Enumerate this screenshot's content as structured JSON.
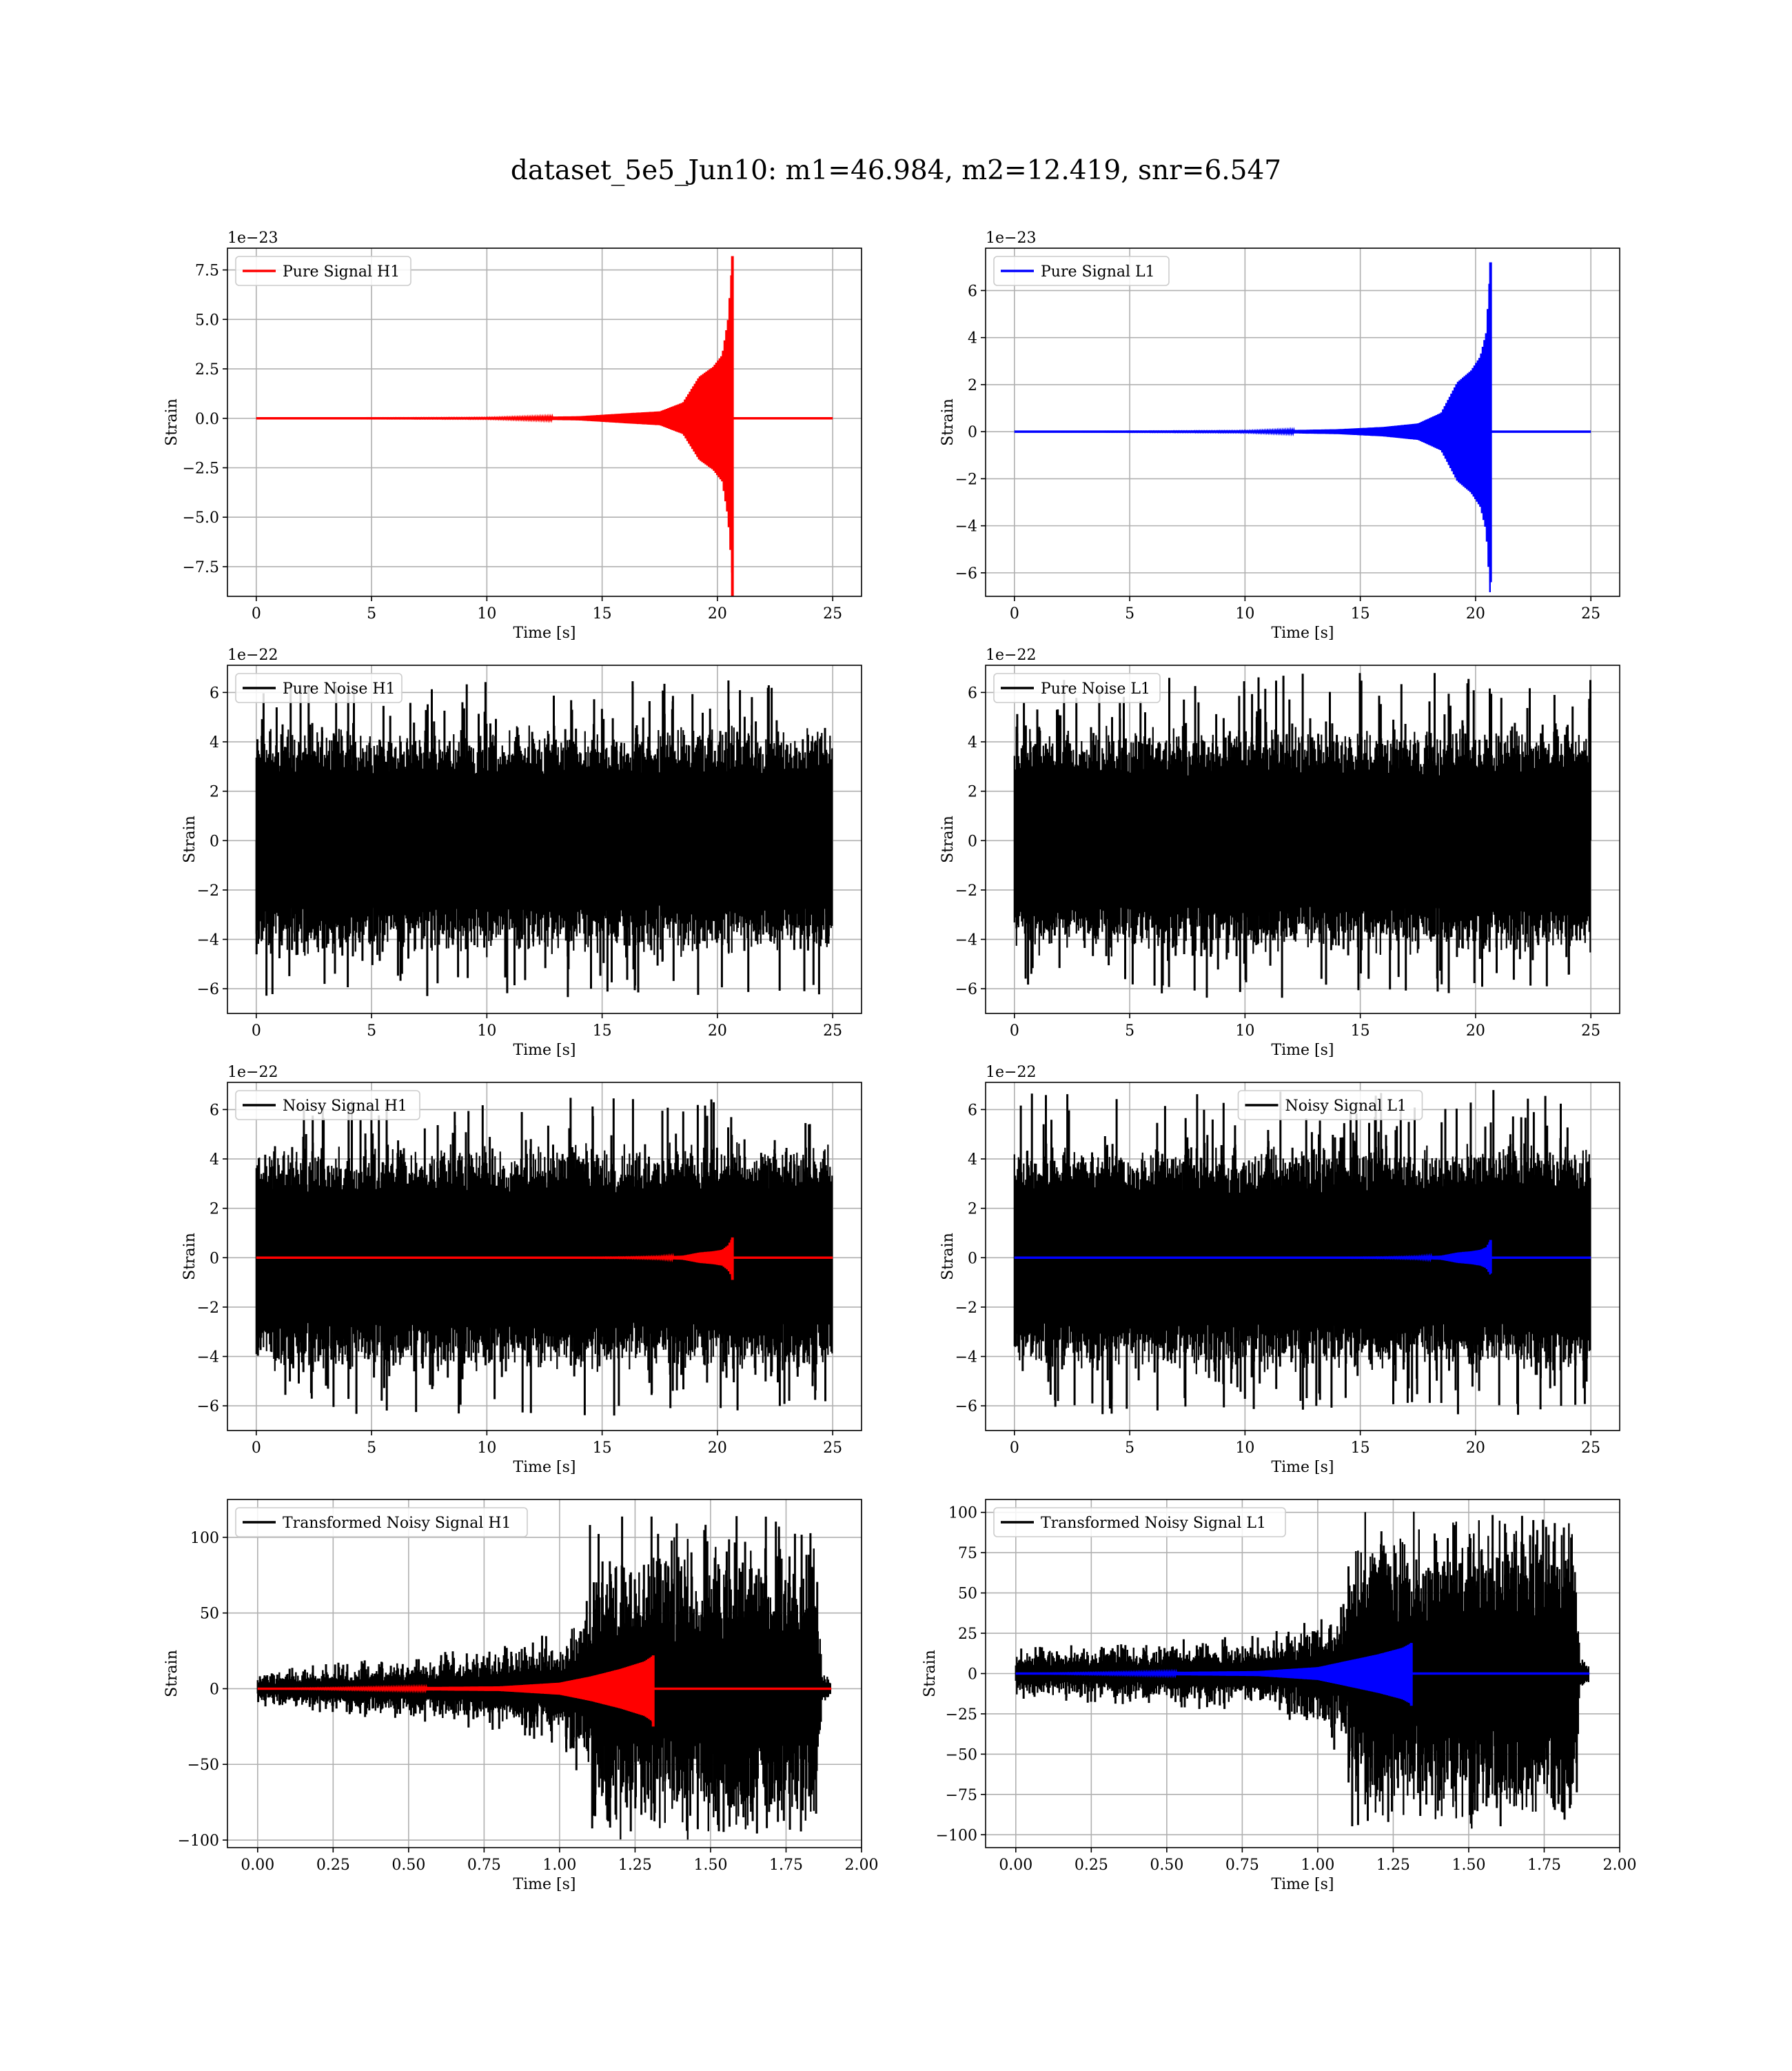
{
  "figure": {
    "suptitle": "dataset_5e5_Jun10: m1=46.984, m2=12.419, snr=6.547"
  },
  "chart_data": [
    {
      "type": "line",
      "id": "pure-signal-h1",
      "xlabel": "Time [s]",
      "ylabel": "Strain",
      "offset_text": "1e−23",
      "xlim": [
        -1.25,
        26.25
      ],
      "ylim": [
        -9.0,
        8.6
      ],
      "xticks": [
        0,
        5,
        10,
        15,
        20,
        25
      ],
      "xtick_labels": [
        "0",
        "5",
        "10",
        "15",
        "20",
        "25"
      ],
      "yticks": [
        -7.5,
        -5.0,
        -2.5,
        0.0,
        2.5,
        5.0,
        7.5
      ],
      "ytick_labels": [
        "−7.5",
        "−5.0",
        "−2.5",
        "0.0",
        "2.5",
        "5.0",
        "7.5"
      ],
      "grid": true,
      "legend_position": "upper-left",
      "series": [
        {
          "name": "Pure Signal H1",
          "color": "#ff0000",
          "kind": "chirp",
          "t_start": 0,
          "t_end": 25,
          "t_merger": 20.65,
          "envelope": [
            [
              0,
              0.0
            ],
            [
              10,
              0.03
            ],
            [
              14,
              0.1
            ],
            [
              16,
              0.25
            ],
            [
              17.5,
              0.35
            ],
            [
              18.5,
              0.8
            ],
            [
              19.2,
              2.1
            ],
            [
              19.8,
              2.6
            ],
            [
              20.2,
              3.2
            ],
            [
              20.45,
              5.0
            ],
            [
              20.65,
              8.2
            ]
          ],
          "min_peak": -9.0,
          "legend_line": true
        }
      ]
    },
    {
      "type": "line",
      "id": "pure-signal-l1",
      "xlabel": "Time [s]",
      "ylabel": "Strain",
      "offset_text": "1e−23",
      "xlim": [
        -1.25,
        26.25
      ],
      "ylim": [
        -7.0,
        7.8
      ],
      "xticks": [
        0,
        5,
        10,
        15,
        20,
        25
      ],
      "xtick_labels": [
        "0",
        "5",
        "10",
        "15",
        "20",
        "25"
      ],
      "yticks": [
        -6,
        -4,
        -2,
        0,
        2,
        4,
        6
      ],
      "ytick_labels": [
        "−6",
        "−4",
        "−2",
        "0",
        "2",
        "4",
        "6"
      ],
      "grid": true,
      "legend_position": "upper-left",
      "series": [
        {
          "name": "Pure Signal L1",
          "color": "#0000ff",
          "kind": "chirp",
          "t_start": 0,
          "t_end": 25,
          "t_merger": 20.65,
          "envelope": [
            [
              0,
              0.0
            ],
            [
              10,
              0.03
            ],
            [
              14,
              0.1
            ],
            [
              16,
              0.2
            ],
            [
              17.5,
              0.35
            ],
            [
              18.5,
              0.8
            ],
            [
              19.2,
              2.1
            ],
            [
              19.8,
              2.6
            ],
            [
              20.2,
              3.2
            ],
            [
              20.45,
              4.2
            ],
            [
              20.65,
              7.2
            ]
          ],
          "min_peak": -6.4,
          "legend_line": true
        }
      ]
    },
    {
      "type": "line",
      "id": "pure-noise-h1",
      "xlabel": "Time [s]",
      "ylabel": "Strain",
      "offset_text": "1e−22",
      "xlim": [
        -1.25,
        26.25
      ],
      "ylim": [
        -7.0,
        7.1
      ],
      "xticks": [
        0,
        5,
        10,
        15,
        20,
        25
      ],
      "xtick_labels": [
        "0",
        "5",
        "10",
        "15",
        "20",
        "25"
      ],
      "yticks": [
        -6,
        -4,
        -2,
        0,
        2,
        4,
        6
      ],
      "ytick_labels": [
        "−6",
        "−4",
        "−2",
        "0",
        "2",
        "4",
        "6"
      ],
      "grid": true,
      "legend_position": "upper-left",
      "series": [
        {
          "name": "Pure Noise H1",
          "color": "#000000",
          "kind": "noise",
          "t_start": 0,
          "t_end": 25,
          "band": 3.6,
          "spike_max": 6.5,
          "spike_min": -6.4,
          "legend_line": true
        }
      ]
    },
    {
      "type": "line",
      "id": "pure-noise-l1",
      "xlabel": "Time [s]",
      "ylabel": "Strain",
      "offset_text": "1e−22",
      "xlim": [
        -1.25,
        26.25
      ],
      "ylim": [
        -7.0,
        7.1
      ],
      "xticks": [
        0,
        5,
        10,
        15,
        20,
        25
      ],
      "xtick_labels": [
        "0",
        "5",
        "10",
        "15",
        "20",
        "25"
      ],
      "yticks": [
        -6,
        -4,
        -2,
        0,
        2,
        4,
        6
      ],
      "ytick_labels": [
        "−6",
        "−4",
        "−2",
        "0",
        "2",
        "4",
        "6"
      ],
      "grid": true,
      "legend_position": "upper-left",
      "series": [
        {
          "name": "Pure Noise L1",
          "color": "#000000",
          "kind": "noise",
          "t_start": 0,
          "t_end": 25,
          "band": 3.6,
          "spike_max": 6.8,
          "spike_min": -6.4,
          "legend_line": true
        }
      ]
    },
    {
      "type": "line",
      "id": "noisy-signal-h1",
      "xlabel": "Time [s]",
      "ylabel": "Strain",
      "offset_text": "1e−22",
      "xlim": [
        -1.25,
        26.25
      ],
      "ylim": [
        -7.0,
        7.1
      ],
      "xticks": [
        0,
        5,
        10,
        15,
        20,
        25
      ],
      "xtick_labels": [
        "0",
        "5",
        "10",
        "15",
        "20",
        "25"
      ],
      "yticks": [
        -6,
        -4,
        -2,
        0,
        2,
        4,
        6
      ],
      "ytick_labels": [
        "−6",
        "−4",
        "−2",
        "0",
        "2",
        "4",
        "6"
      ],
      "grid": true,
      "legend_position": "upper-left",
      "series": [
        {
          "name": "Noisy Signal H1",
          "color": "#000000",
          "kind": "noise",
          "t_start": 0,
          "t_end": 25,
          "band": 3.6,
          "spike_max": 6.5,
          "spike_min": -6.4,
          "legend_line": true
        },
        {
          "name": "",
          "color": "#ff0000",
          "kind": "chirp",
          "t_start": 0,
          "t_end": 25,
          "t_merger": 20.65,
          "envelope": [
            [
              0,
              0.0
            ],
            [
              14,
              0.01
            ],
            [
              16,
              0.02
            ],
            [
              17.5,
              0.04
            ],
            [
              18.5,
              0.08
            ],
            [
              19.2,
              0.21
            ],
            [
              19.8,
              0.26
            ],
            [
              20.2,
              0.32
            ],
            [
              20.45,
              0.5
            ],
            [
              20.65,
              0.82
            ]
          ],
          "min_peak": -0.9,
          "legend_line": false
        }
      ]
    },
    {
      "type": "line",
      "id": "noisy-signal-l1",
      "xlabel": "Time [s]",
      "ylabel": "Strain",
      "offset_text": "1e−22",
      "xlim": [
        -1.25,
        26.25
      ],
      "ylim": [
        -7.0,
        7.1
      ],
      "xticks": [
        0,
        5,
        10,
        15,
        20,
        25
      ],
      "xtick_labels": [
        "0",
        "5",
        "10",
        "15",
        "20",
        "25"
      ],
      "yticks": [
        -6,
        -4,
        -2,
        0,
        2,
        4,
        6
      ],
      "ytick_labels": [
        "−6",
        "−4",
        "−2",
        "0",
        "2",
        "4",
        "6"
      ],
      "grid": true,
      "legend_position": "upper-center",
      "series": [
        {
          "name": "Noisy Signal L1",
          "color": "#000000",
          "kind": "noise",
          "t_start": 0,
          "t_end": 25,
          "band": 3.6,
          "spike_max": 6.8,
          "spike_min": -6.4,
          "legend_line": true
        },
        {
          "name": "",
          "color": "#0000ff",
          "kind": "chirp",
          "t_start": 0,
          "t_end": 25,
          "t_merger": 20.65,
          "envelope": [
            [
              0,
              0.0
            ],
            [
              14,
              0.01
            ],
            [
              16,
              0.02
            ],
            [
              17.5,
              0.04
            ],
            [
              18.5,
              0.08
            ],
            [
              19.2,
              0.21
            ],
            [
              19.8,
              0.26
            ],
            [
              20.2,
              0.32
            ],
            [
              20.45,
              0.42
            ],
            [
              20.65,
              0.72
            ]
          ],
          "min_peak": -0.64,
          "legend_line": false
        }
      ]
    },
    {
      "type": "line",
      "id": "transformed-noisy-signal-h1",
      "xlabel": "Time [s]",
      "ylabel": "Strain",
      "offset_text": "",
      "xlim": [
        -0.1,
        2.0
      ],
      "ylim": [
        -105,
        125
      ],
      "xticks": [
        0.0,
        0.25,
        0.5,
        0.75,
        1.0,
        1.25,
        1.5,
        1.75,
        2.0
      ],
      "xtick_labels": [
        "0.00",
        "0.25",
        "0.50",
        "0.75",
        "1.00",
        "1.25",
        "1.50",
        "1.75",
        "2.00"
      ],
      "yticks": [
        -100,
        -50,
        0,
        50,
        100
      ],
      "ytick_labels": [
        "−100",
        "−50",
        "0",
        "50",
        "100"
      ],
      "grid": true,
      "legend_position": "upper-left",
      "series": [
        {
          "name": "Transformed Noisy Signal H1",
          "color": "#000000",
          "kind": "whitened",
          "t_start": 0.0,
          "t_end": 1.9,
          "envelope": [
            [
              0,
              6
            ],
            [
              0.4,
              10
            ],
            [
              0.8,
              14
            ],
            [
              1.0,
              20
            ],
            [
              1.1,
              35
            ],
            [
              1.12,
              60
            ],
            [
              1.85,
              60
            ],
            [
              1.87,
              6
            ],
            [
              1.9,
              5
            ]
          ],
          "spike_max": 116,
          "spike_min": -99,
          "legend_line": true
        },
        {
          "name": "",
          "color": "#ff0000",
          "kind": "chirp",
          "t_start": 0.0,
          "t_end": 1.9,
          "t_merger": 1.31,
          "envelope": [
            [
              0,
              0.0
            ],
            [
              0.8,
              1.5
            ],
            [
              1.0,
              4
            ],
            [
              1.1,
              8
            ],
            [
              1.2,
              13
            ],
            [
              1.28,
              18
            ],
            [
              1.31,
              22
            ]
          ],
          "min_peak": -25,
          "legend_line": false
        }
      ]
    },
    {
      "type": "line",
      "id": "transformed-noisy-signal-l1",
      "xlabel": "Time [s]",
      "ylabel": "Strain",
      "offset_text": "",
      "xlim": [
        -0.1,
        2.0
      ],
      "ylim": [
        -108,
        108
      ],
      "xticks": [
        0.0,
        0.25,
        0.5,
        0.75,
        1.0,
        1.25,
        1.5,
        1.75,
        2.0
      ],
      "xtick_labels": [
        "0.00",
        "0.25",
        "0.50",
        "0.75",
        "1.00",
        "1.25",
        "1.50",
        "1.75",
        "2.00"
      ],
      "yticks": [
        -100,
        -75,
        -50,
        -25,
        0,
        25,
        50,
        75,
        100
      ],
      "ytick_labels": [
        "−100",
        "−75",
        "−50",
        "−25",
        "0",
        "25",
        "50",
        "75",
        "100"
      ],
      "grid": true,
      "legend_position": "upper-left",
      "series": [
        {
          "name": "Transformed Noisy Signal L1",
          "color": "#000000",
          "kind": "whitened",
          "t_start": 0.0,
          "t_end": 1.9,
          "envelope": [
            [
              0,
              8
            ],
            [
              0.4,
              10
            ],
            [
              0.8,
              12
            ],
            [
              1.0,
              18
            ],
            [
              1.1,
              30
            ],
            [
              1.12,
              60
            ],
            [
              1.85,
              62
            ],
            [
              1.87,
              6
            ],
            [
              1.9,
              5
            ]
          ],
          "spike_max": 101,
          "spike_min": -97,
          "legend_line": true
        },
        {
          "name": "",
          "color": "#0000ff",
          "kind": "chirp",
          "t_start": 0.0,
          "t_end": 1.9,
          "t_merger": 1.31,
          "envelope": [
            [
              0,
              0.0
            ],
            [
              0.8,
              1.5
            ],
            [
              1.0,
              4
            ],
            [
              1.1,
              8
            ],
            [
              1.2,
              12
            ],
            [
              1.28,
              16
            ],
            [
              1.31,
              19
            ]
          ],
          "min_peak": -20,
          "legend_line": false
        }
      ]
    }
  ]
}
